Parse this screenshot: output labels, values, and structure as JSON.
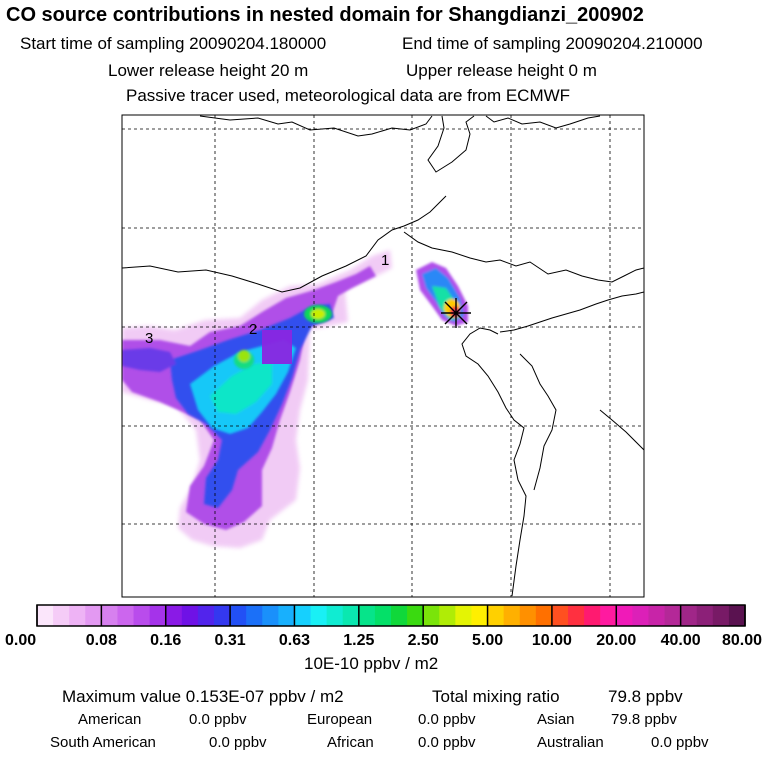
{
  "header": {
    "title": "CO  source contributions in nested domain for Shangdianzi_200902",
    "start_label": "Start time of sampling 20090204.180000",
    "end_label": "End time of sampling 20090204.210000",
    "lower_label": "Lower release height   20 m",
    "upper_label": "Upper release height    0 m",
    "note": "Passive tracer used, meteorological data are from ECMWF"
  },
  "map": {
    "markers": [
      {
        "label": "1"
      },
      {
        "label": "2"
      },
      {
        "label": "3"
      }
    ],
    "receptor": "star-marker"
  },
  "colorbar": {
    "colors": [
      "#fbe6fb",
      "#f5ccf7",
      "#eeb3f5",
      "#e399f2",
      "#d780ef",
      "#cc66ee",
      "#b94cec",
      "#a533ea",
      "#8a1ae6",
      "#6f12e6",
      "#5224ec",
      "#3438f0",
      "#2250f5",
      "#1b70f8",
      "#1a90fb",
      "#18b0fd",
      "#16d0fe",
      "#19f0f5",
      "#10ecd2",
      "#0ae8b0",
      "#06e48a",
      "#04e068",
      "#10d83a",
      "#3ada10",
      "#7ae40a",
      "#b0ec06",
      "#e4f404",
      "#ffef00",
      "#ffd000",
      "#ffb000",
      "#ff9000",
      "#ff7000",
      "#ff5020",
      "#ff3040",
      "#ff1a70",
      "#ff1aa0",
      "#f01ab8",
      "#dc20b8",
      "#c824a8",
      "#b42898",
      "#a02688",
      "#8c2078",
      "#781a66",
      "#5a1250"
    ],
    "tick_labels": [
      "0.00",
      "0.08",
      "0.16",
      "0.31",
      "0.63",
      "1.25",
      "2.50",
      "5.00",
      "10.00",
      "20.00",
      "40.00",
      "80.00"
    ],
    "unit": "10E-10 ppbv / m2"
  },
  "stats": {
    "max_label": "Maximum value  0.153E-07 ppbv / m2",
    "total_label": "Total mixing ratio",
    "total_value": "79.8 ppbv",
    "regions": [
      {
        "name": "American",
        "value": "0.0 ppbv"
      },
      {
        "name": "European",
        "value": "0.0 ppbv"
      },
      {
        "name": "Asian",
        "value": "79.8 ppbv"
      },
      {
        "name": "South American",
        "value": "0.0 ppbv"
      },
      {
        "name": "African",
        "value": "0.0 ppbv"
      },
      {
        "name": "Australian",
        "value": "0.0 ppbv"
      }
    ]
  }
}
